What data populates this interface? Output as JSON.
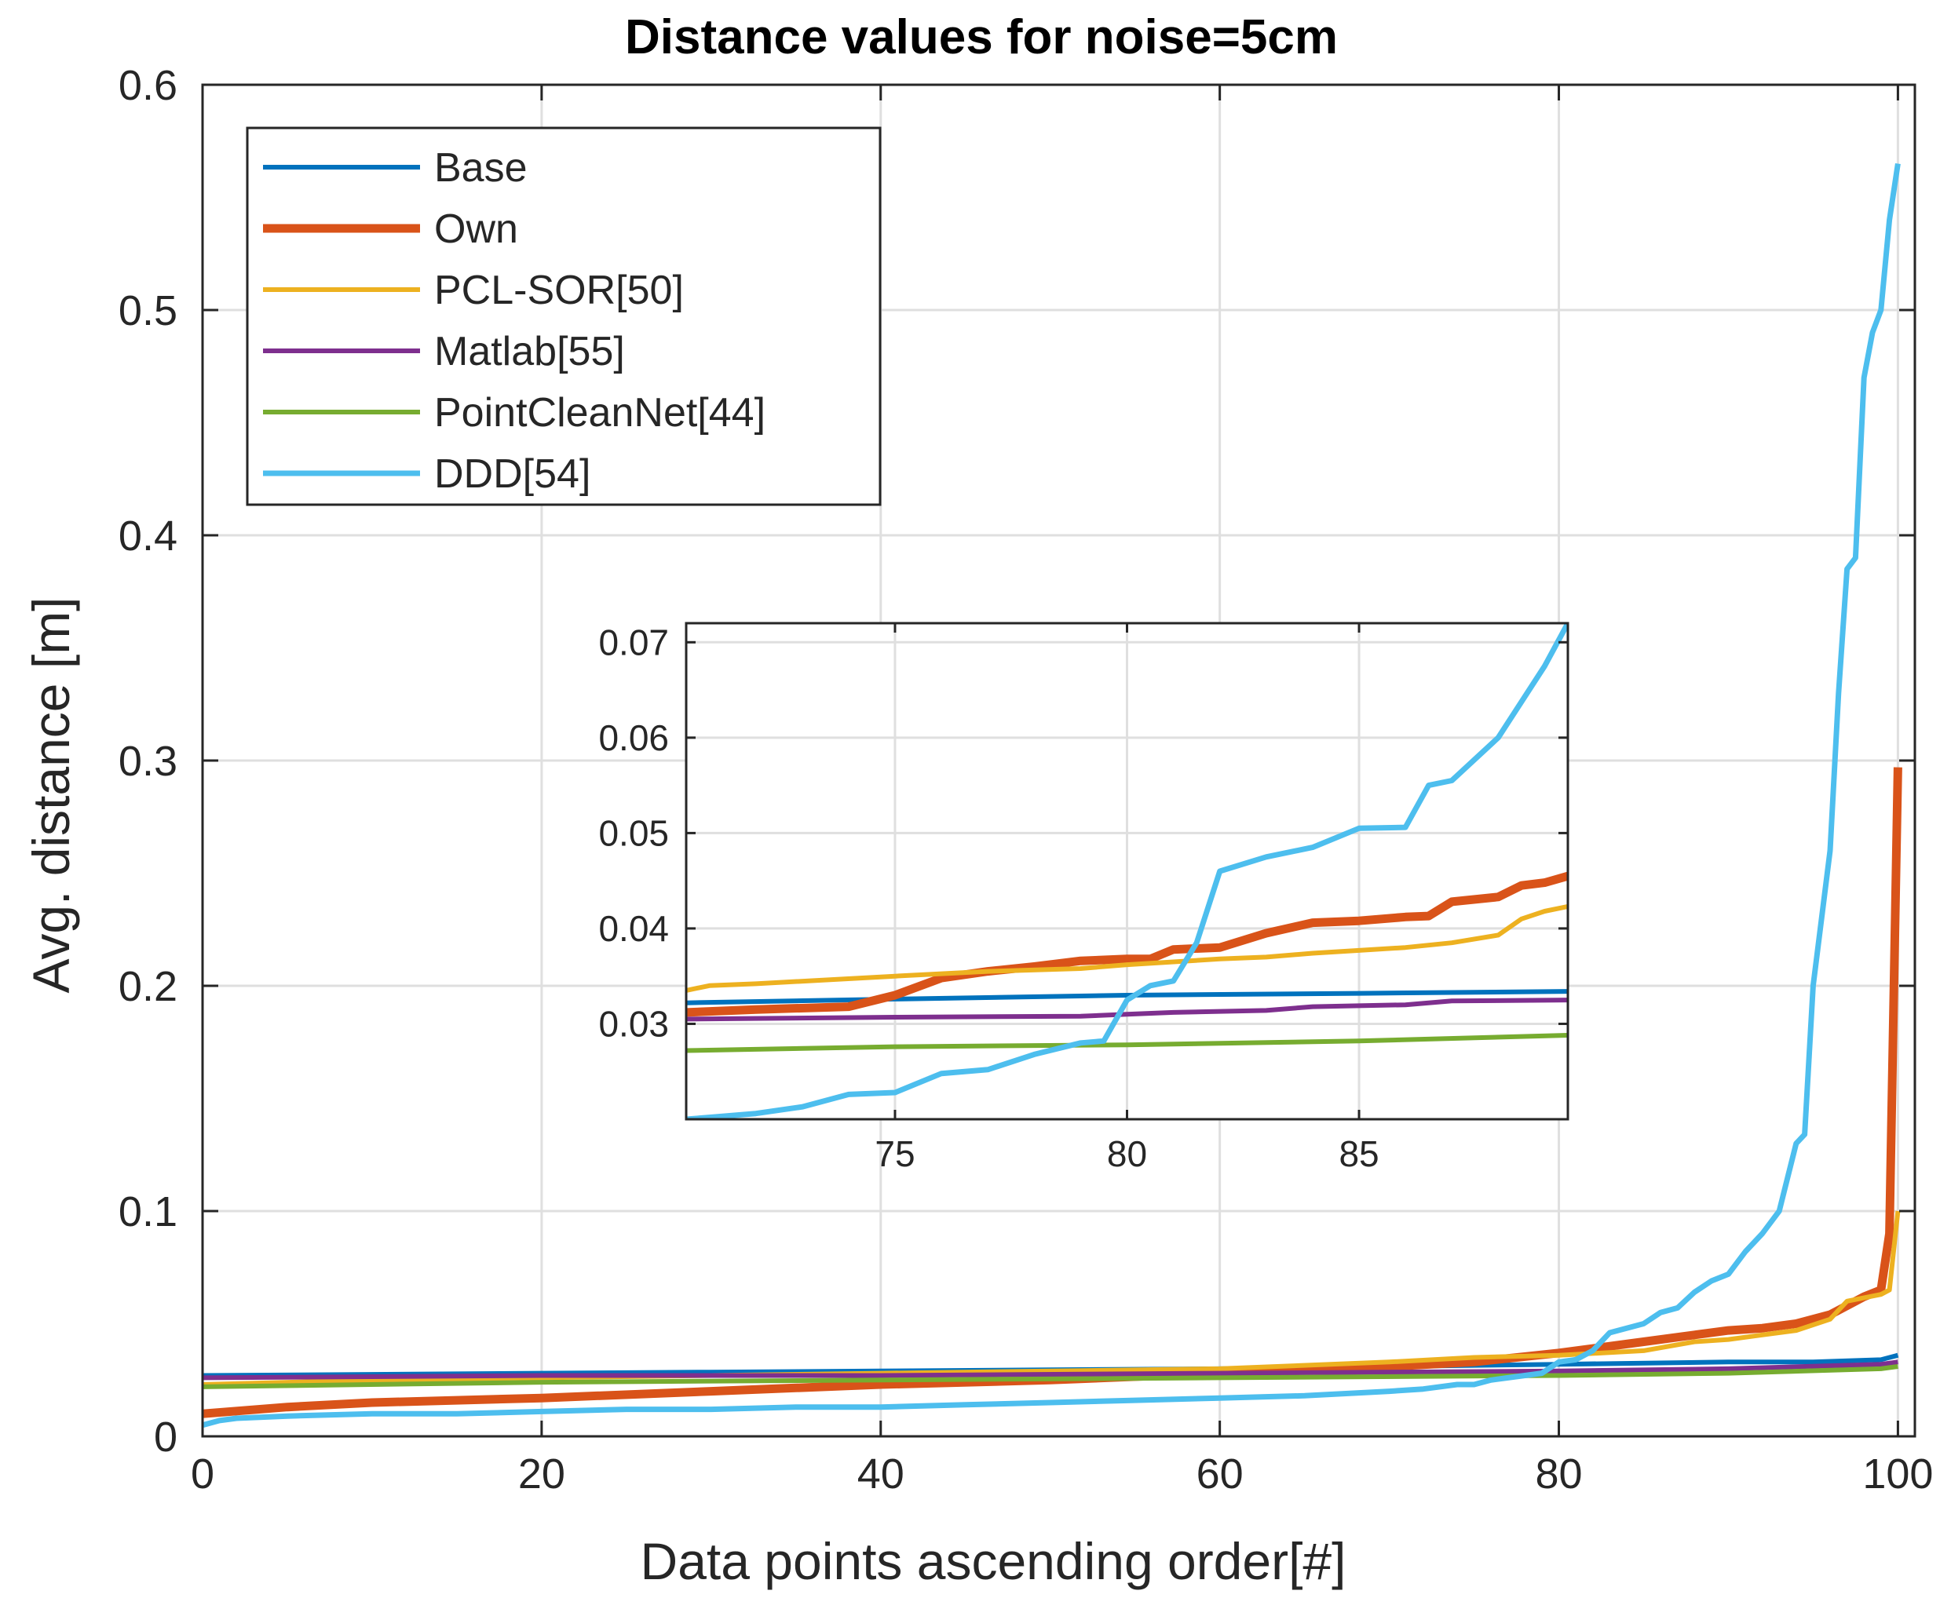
{
  "chart_data": [
    {
      "type": "line",
      "title": "Distance values for noise=5cm",
      "xlabel": "Data points ascending order[#]",
      "ylabel": "Avg. distance [m]",
      "xlim": [
        0,
        101
      ],
      "ylim": [
        0,
        0.6
      ],
      "xticks": [
        0,
        20,
        40,
        60,
        80,
        100
      ],
      "xtick_labels": [
        "0",
        "20",
        "40",
        "60",
        "80",
        "100"
      ],
      "yticks": [
        0,
        0.1,
        0.2,
        0.3,
        0.4,
        0.5,
        0.6
      ],
      "ytick_labels": [
        "0",
        "0.1",
        "0.2",
        "0.3",
        "0.4",
        "0.5",
        "0.6"
      ],
      "grid": true,
      "legend": "top-left",
      "series": [
        {
          "name": "Base",
          "color": "#0072BD",
          "x": [
            0,
            10,
            20,
            30,
            40,
            50,
            60,
            70,
            80,
            90,
            95,
            99,
            100
          ],
          "values": [
            0.027,
            0.0275,
            0.028,
            0.0285,
            0.029,
            0.0295,
            0.03,
            0.031,
            0.032,
            0.033,
            0.033,
            0.034,
            0.036
          ]
        },
        {
          "name": "Own",
          "color": "#D95319",
          "x": [
            0,
            5,
            10,
            20,
            30,
            40,
            50,
            60,
            70,
            75,
            80,
            85,
            88,
            90,
            92,
            94,
            96,
            98,
            99,
            99.5,
            100
          ],
          "values": [
            0.01,
            0.013,
            0.015,
            0.017,
            0.02,
            0.023,
            0.025,
            0.028,
            0.031,
            0.033,
            0.037,
            0.042,
            0.045,
            0.047,
            0.048,
            0.05,
            0.054,
            0.062,
            0.065,
            0.09,
            0.297
          ]
        },
        {
          "name": "PCL-SOR[50]",
          "color": "#EDB120",
          "x": [
            0,
            10,
            20,
            30,
            40,
            50,
            60,
            70,
            75,
            80,
            85,
            88,
            90,
            92,
            94,
            96,
            97,
            99,
            99.5,
            100
          ],
          "values": [
            0.023,
            0.025,
            0.026,
            0.027,
            0.028,
            0.029,
            0.03,
            0.033,
            0.035,
            0.036,
            0.038,
            0.042,
            0.043,
            0.045,
            0.047,
            0.052,
            0.06,
            0.063,
            0.065,
            0.1
          ]
        },
        {
          "name": "Matlab[55]",
          "color": "#7E2F8E",
          "x": [
            0,
            20,
            40,
            60,
            80,
            90,
            99,
            100
          ],
          "values": [
            0.026,
            0.027,
            0.027,
            0.028,
            0.029,
            0.03,
            0.032,
            0.033
          ]
        },
        {
          "name": "PointCleanNet[44]",
          "color": "#77AC30",
          "x": [
            0,
            20,
            40,
            60,
            80,
            90,
            99,
            100
          ],
          "values": [
            0.022,
            0.024,
            0.025,
            0.026,
            0.027,
            0.028,
            0.03,
            0.031
          ]
        },
        {
          "name": "DDD[54]",
          "color": "#4DBEEE",
          "x": [
            0,
            1,
            2,
            5,
            10,
            15,
            20,
            25,
            30,
            35,
            40,
            45,
            50,
            55,
            60,
            65,
            70,
            72,
            74,
            75,
            76,
            77,
            78,
            79,
            80,
            81,
            82,
            83,
            84,
            85,
            86,
            87,
            88,
            89,
            90,
            91,
            92,
            93,
            94,
            94.5,
            95,
            95.5,
            96,
            96.5,
            97,
            97.5,
            98,
            98.5,
            99,
            99.5,
            100
          ],
          "values": [
            0.005,
            0.007,
            0.008,
            0.009,
            0.01,
            0.01,
            0.011,
            0.012,
            0.012,
            0.013,
            0.013,
            0.014,
            0.015,
            0.016,
            0.017,
            0.018,
            0.02,
            0.021,
            0.023,
            0.023,
            0.025,
            0.026,
            0.027,
            0.028,
            0.033,
            0.034,
            0.038,
            0.046,
            0.048,
            0.05,
            0.055,
            0.057,
            0.064,
            0.069,
            0.072,
            0.082,
            0.09,
            0.1,
            0.13,
            0.134,
            0.2,
            0.23,
            0.26,
            0.33,
            0.385,
            0.39,
            0.47,
            0.49,
            0.5,
            0.54,
            0.565
          ]
        }
      ]
    },
    {
      "type": "line",
      "title": "",
      "xlabel": "",
      "ylabel": "",
      "xlim": [
        70.5,
        89.5
      ],
      "ylim": [
        0.02,
        0.072
      ],
      "xticks": [
        75,
        80,
        85
      ],
      "xtick_labels": [
        "75",
        "80",
        "85"
      ],
      "yticks": [
        0.03,
        0.04,
        0.05,
        0.06,
        0.07
      ],
      "ytick_labels": [
        "0.03",
        "0.04",
        "0.05",
        "0.06",
        "0.07"
      ],
      "grid": true,
      "series": [
        {
          "name": "Base",
          "color": "#0072BD",
          "x": [
            70.5,
            75,
            80,
            85,
            89.5
          ],
          "values": [
            0.0322,
            0.0326,
            0.033,
            0.0332,
            0.0334
          ]
        },
        {
          "name": "Own",
          "color": "#D95319",
          "x": [
            70.5,
            72,
            74,
            75,
            76,
            77,
            78,
            79,
            80,
            80.5,
            81,
            82,
            83,
            84,
            85,
            86,
            86.5,
            87,
            88,
            88.5,
            89,
            89.5
          ],
          "values": [
            0.0312,
            0.0315,
            0.0318,
            0.033,
            0.0348,
            0.0355,
            0.036,
            0.0366,
            0.0368,
            0.0368,
            0.0378,
            0.038,
            0.0395,
            0.0406,
            0.0408,
            0.0412,
            0.0413,
            0.0428,
            0.0433,
            0.0445,
            0.0448,
            0.0455
          ]
        },
        {
          "name": "PCL-SOR[50]",
          "color": "#EDB120",
          "x": [
            70.5,
            71,
            72,
            75,
            77,
            79,
            80,
            81,
            82,
            83,
            84,
            85,
            86,
            87,
            88,
            88.5,
            89,
            89.5
          ],
          "values": [
            0.0335,
            0.034,
            0.0342,
            0.035,
            0.0355,
            0.0358,
            0.0362,
            0.0365,
            0.0368,
            0.037,
            0.0374,
            0.0377,
            0.038,
            0.0385,
            0.0393,
            0.041,
            0.0418,
            0.0423
          ]
        },
        {
          "name": "Matlab[55]",
          "color": "#7E2F8E",
          "x": [
            70.5,
            75,
            79,
            80,
            81,
            83,
            84,
            85,
            86,
            87,
            89.5
          ],
          "values": [
            0.0305,
            0.0307,
            0.0308,
            0.031,
            0.0312,
            0.0314,
            0.0318,
            0.0319,
            0.032,
            0.0324,
            0.0325
          ]
        },
        {
          "name": "PointCleanNet[44]",
          "color": "#77AC30",
          "x": [
            70.5,
            75,
            80,
            85,
            89.5
          ],
          "values": [
            0.0272,
            0.0276,
            0.0278,
            0.0282,
            0.0288
          ]
        },
        {
          "name": "DDD[54]",
          "color": "#4DBEEE",
          "x": [
            70.5,
            71,
            72,
            73,
            74,
            75,
            76,
            77,
            78,
            79,
            79.5,
            80,
            80.5,
            81,
            81.5,
            82,
            83,
            84,
            85,
            86,
            86.5,
            87,
            88,
            89,
            89.5
          ],
          "values": [
            0.02,
            0.0202,
            0.0206,
            0.0213,
            0.0226,
            0.0228,
            0.0248,
            0.0252,
            0.0268,
            0.028,
            0.0282,
            0.0325,
            0.034,
            0.0345,
            0.0385,
            0.046,
            0.0475,
            0.0485,
            0.0505,
            0.0506,
            0.055,
            0.0555,
            0.06,
            0.0675,
            0.072
          ]
        }
      ]
    }
  ]
}
